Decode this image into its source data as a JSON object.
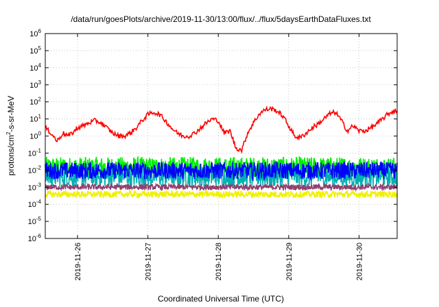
{
  "chart_data": {
    "type": "line",
    "title": "/data/run/goesPlots/archive/2019-11-30/13:00/flux/../flux/5daysEarthDataFluxes.txt",
    "xlabel": "Coordinated Universal Time (UTC)",
    "ylabel_parts": {
      "base": "protons/cm",
      "exp": "2",
      "rest": "-s-sr-MeV"
    },
    "y_scale": "log",
    "ylim": [
      1e-06,
      1000000.0
    ],
    "y_ticks": [
      {
        "base": "10",
        "exp": "-6",
        "value": 1e-06
      },
      {
        "base": "10",
        "exp": "-5",
        "value": 1e-05
      },
      {
        "base": "10",
        "exp": "-4",
        "value": 0.0001
      },
      {
        "base": "10",
        "exp": "-3",
        "value": 0.001
      },
      {
        "base": "10",
        "exp": "-2",
        "value": 0.01
      },
      {
        "base": "10",
        "exp": "-1",
        "value": 0.1
      },
      {
        "base": "10",
        "exp": "0",
        "value": 1
      },
      {
        "base": "10",
        "exp": "1",
        "value": 10
      },
      {
        "base": "10",
        "exp": "2",
        "value": 100
      },
      {
        "base": "10",
        "exp": "3",
        "value": 1000
      },
      {
        "base": "10",
        "exp": "4",
        "value": 10000
      },
      {
        "base": "10",
        "exp": "5",
        "value": 100000
      },
      {
        "base": "10",
        "exp": "6",
        "value": 1000000
      }
    ],
    "x_range": [
      "2019-11-25T13:00",
      "2019-11-30T13:00"
    ],
    "x_ticks": [
      "2019-11-26",
      "2019-11-27",
      "2019-11-28",
      "2019-11-29",
      "2019-11-30"
    ],
    "grid": true,
    "series": [
      {
        "color": "#ff0000",
        "x": [
          "2019-11-25T13:00",
          "2019-11-25T15:00",
          "2019-11-25T17:00",
          "2019-11-25T19:00",
          "2019-11-25T21:00",
          "2019-11-25T23:00",
          "2019-11-26T00:00",
          "2019-11-26T02:00",
          "2019-11-26T04:00",
          "2019-11-26T06:00",
          "2019-11-26T08:00",
          "2019-11-26T10:00",
          "2019-11-26T12:00",
          "2019-11-26T14:00",
          "2019-11-26T16:00",
          "2019-11-26T18:00",
          "2019-11-26T20:00",
          "2019-11-26T22:00",
          "2019-11-27T00:00",
          "2019-11-27T02:00",
          "2019-11-27T04:00",
          "2019-11-27T06:00",
          "2019-11-27T08:00",
          "2019-11-27T10:00",
          "2019-11-27T12:00",
          "2019-11-27T14:00",
          "2019-11-27T16:00",
          "2019-11-27T18:00",
          "2019-11-27T20:00",
          "2019-11-27T22:00",
          "2019-11-28T00:00",
          "2019-11-28T02:00",
          "2019-11-28T04:00",
          "2019-11-28T06:00",
          "2019-11-28T08:00",
          "2019-11-28T10:00",
          "2019-11-28T12:00",
          "2019-11-28T14:00",
          "2019-11-28T16:00",
          "2019-11-28T18:00",
          "2019-11-28T20:00",
          "2019-11-28T22:00",
          "2019-11-29T00:00",
          "2019-11-29T02:00",
          "2019-11-29T04:00",
          "2019-11-29T06:00",
          "2019-11-29T08:00",
          "2019-11-29T10:00",
          "2019-11-29T12:00",
          "2019-11-29T14:00",
          "2019-11-29T16:00",
          "2019-11-29T18:00",
          "2019-11-29T20:00",
          "2019-11-29T22:00",
          "2019-11-30T00:00",
          "2019-11-30T02:00",
          "2019-11-30T04:00",
          "2019-11-30T06:00",
          "2019-11-30T08:00",
          "2019-11-30T10:00",
          "2019-11-30T12:00",
          "2019-11-30T13:00"
        ],
        "values": [
          3,
          1.5,
          0.5,
          1.5,
          1,
          2,
          3,
          4,
          6,
          8,
          6,
          3,
          1.5,
          1,
          1,
          1.5,
          3,
          8,
          18,
          25,
          18,
          8,
          3,
          1.5,
          1,
          1,
          1.5,
          3,
          6,
          10,
          8,
          1.5,
          2,
          0.2,
          0.15,
          1.5,
          6,
          20,
          35,
          40,
          30,
          15,
          4,
          1,
          0.8,
          1.5,
          3,
          5,
          10,
          20,
          25,
          8,
          2,
          4,
          2,
          2,
          3,
          5,
          10,
          20,
          30,
          30
        ]
      },
      {
        "color": "#00ee00",
        "band": [
          0.004,
          0.06
        ]
      },
      {
        "color": "#00b0b0",
        "band": [
          0.001,
          0.02
        ]
      },
      {
        "color": "#0000ff",
        "band": [
          0.003,
          0.03
        ]
      },
      {
        "color": "#904070",
        "band": [
          0.0007,
          0.0015
        ]
      },
      {
        "color": "#f0f000",
        "band": [
          0.00025,
          0.0006
        ]
      }
    ]
  }
}
